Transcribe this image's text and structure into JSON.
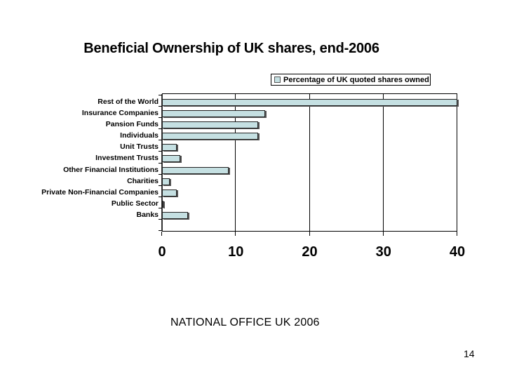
{
  "slide": {
    "title": "Beneficial Ownership of UK shares, end-2006",
    "footer": "NATIONAL OFFICE  UK 2006",
    "page_number": "14"
  },
  "legend": {
    "label": "Percentage of UK quoted shares owned"
  },
  "colors": {
    "bar_fill": "#c5e0e2",
    "bar_border": "#222222",
    "bar_shadow": "#555555"
  },
  "axis": {
    "x_ticks": [
      "0",
      "10",
      "20",
      "30",
      "40"
    ]
  },
  "chart_data": {
    "type": "bar",
    "orientation": "horizontal",
    "title": "Beneficial Ownership of UK shares, end-2006",
    "xlabel": "",
    "ylabel": "",
    "xlim": [
      0,
      40
    ],
    "x_ticks": [
      0,
      10,
      20,
      30,
      40
    ],
    "grid": "vertical major gridlines",
    "legend_position": "top-right",
    "categories": [
      "Rest of the World",
      "Insurance Companies",
      "Pansion Funds",
      "Individuals",
      "Unit Trusts",
      "Investment Trusts",
      "Other Financial Institutions",
      "Charities",
      "Private Non-Financial Companies",
      "Public Sector",
      "Banks"
    ],
    "series": [
      {
        "name": "Percentage of UK quoted shares owned",
        "values": [
          40.0,
          14.0,
          13.0,
          13.0,
          2.0,
          2.5,
          9.0,
          1.0,
          2.0,
          0.1,
          3.5
        ]
      }
    ]
  }
}
